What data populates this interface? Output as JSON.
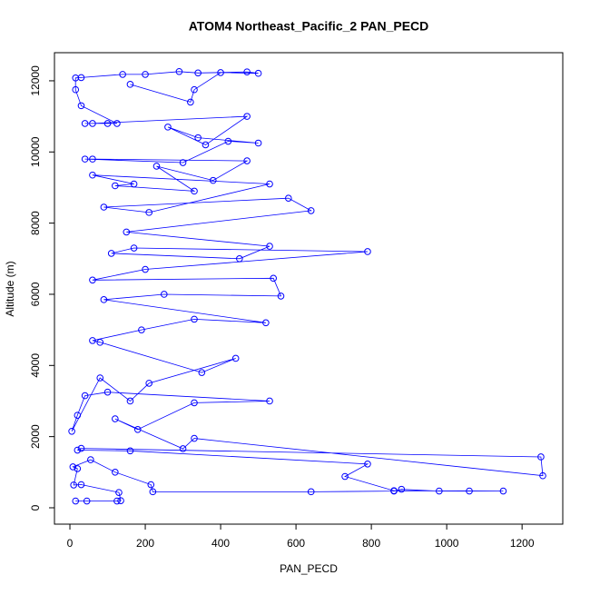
{
  "chart_data": {
    "type": "line",
    "title": "ATOM4 Northeast_Pacific_2 PAN_PECD",
    "x_label": "PAN_PECD",
    "y_label": "Altitude (m)",
    "color": "#0000ff",
    "markers": true,
    "xlim": [
      -41,
      1308
    ],
    "ylim": [
      -460,
      12790
    ],
    "xticks": [
      0,
      200,
      400,
      600,
      800,
      1000,
      1200
    ],
    "yticks": [
      0,
      2000,
      4000,
      6000,
      8000,
      10000,
      12000
    ],
    "x": [
      15,
      45,
      125,
      135,
      130,
      30,
      10,
      20,
      8,
      55,
      120,
      215,
      220,
      640,
      860,
      880,
      980,
      1060,
      1150,
      860,
      730,
      790,
      160,
      20,
      30,
      1250,
      1255,
      330,
      300,
      120,
      180,
      330,
      530,
      100,
      40,
      20,
      5,
      80,
      160,
      210,
      440,
      350,
      80,
      60,
      190,
      330,
      520,
      90,
      250,
      560,
      540,
      60,
      200,
      790,
      170,
      110,
      450,
      530,
      150,
      640,
      580,
      90,
      210,
      530,
      60,
      170,
      120,
      330,
      230,
      380,
      470,
      60,
      40,
      300,
      420,
      500,
      340,
      260,
      360,
      470,
      60,
      40,
      100,
      125,
      30,
      15,
      15,
      30,
      140,
      200,
      290,
      340,
      470,
      500,
      400,
      330,
      320,
      160
    ],
    "values": [
      190,
      190,
      190,
      200,
      430,
      650,
      640,
      1100,
      1150,
      1350,
      1000,
      650,
      450,
      450,
      470,
      520,
      470,
      470,
      470,
      480,
      880,
      1230,
      1600,
      1620,
      1670,
      1430,
      900,
      1950,
      1660,
      2500,
      2200,
      2950,
      3000,
      3250,
      3150,
      2600,
      2150,
      3650,
      3000,
      3500,
      4200,
      3800,
      4650,
      4700,
      5000,
      5300,
      5200,
      5850,
      6000,
      5950,
      6450,
      6400,
      6700,
      7200,
      7300,
      7150,
      7000,
      7350,
      7750,
      8350,
      8700,
      8450,
      8300,
      9100,
      9350,
      9100,
      9050,
      8900,
      9600,
      9200,
      9750,
      9800,
      9800,
      9700,
      10300,
      10250,
      10400,
      10700,
      10200,
      11000,
      10800,
      10800,
      10800,
      10800,
      11300,
      11750,
      12080,
      12090,
      12180,
      12180,
      12260,
      12220,
      12250,
      12210,
      12230,
      11750,
      11400,
      11900
    ]
  }
}
